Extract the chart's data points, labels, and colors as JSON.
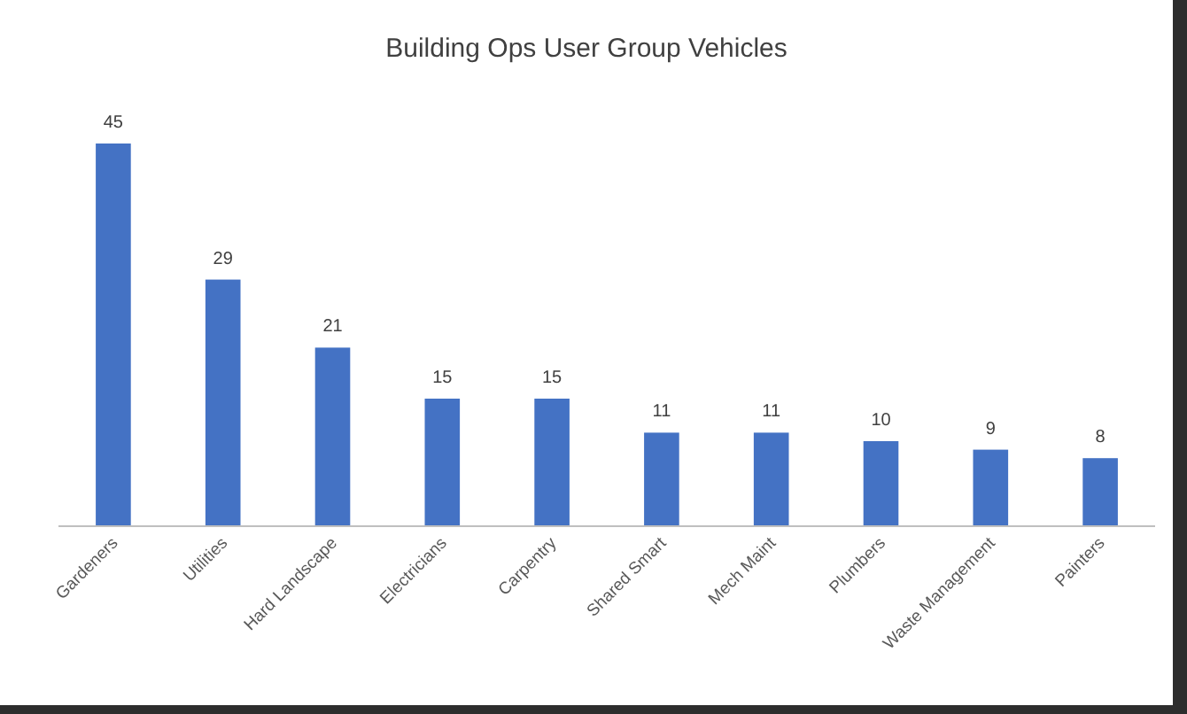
{
  "chart_data": {
    "type": "bar",
    "title": "Building Ops User Group Vehicles",
    "categories": [
      "Gardeners",
      "Utilities",
      "Hard Landscape",
      "Electricians",
      "Carpentry",
      "Shared Smart",
      "Mech Maint",
      "Plumbers",
      "Waste Management",
      "Painters"
    ],
    "values": [
      45,
      29,
      21,
      15,
      15,
      11,
      11,
      10,
      9,
      8
    ],
    "color": "#4472c4",
    "data_labels": true
  }
}
